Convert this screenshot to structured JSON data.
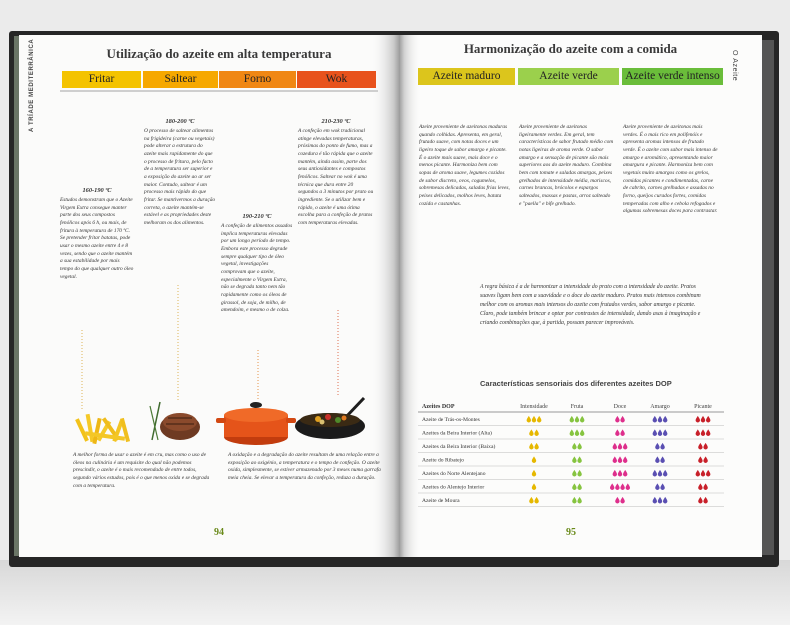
{
  "left_page": {
    "side_label": "A TRÍADE MEDITERRÂNICA",
    "title": "Utilização do azeite em alta temperatura",
    "methods": [
      {
        "name": "Fritar",
        "color": "#f4c300",
        "temperature": "160-190 ºC",
        "text": "Estudos demonstram que o Azeite Virgem Extra consegue manter parte dos seus compostos fenólicos após 6 h, ou mais, de fritura à temperatura de 170 ºC. Se pretender fritar batatas, pode usar o mesmo azeite entre 4 e 8 vezes, sendo que o azeite mantém a sua estabilidade por mais tempo do que qualquer outro óleo vegetal."
      },
      {
        "name": "Saltear",
        "color": "#f6a800",
        "temperature": "180-200 ºC",
        "text": "O processo de saltear alimentos na frigideira (carne ou vegetais) pode alterar a estrutura do azeite mais rapidamente do que o processo de fritura, pelo facto de a temperatura ser superior e a exposição do azeite ao ar ser maior. Contudo, saltear é um processo mais rápido do que fritar. Se mantivermos a duração correta, o azeite mantém-se estável e as propriedades deste melhoram os dos alimentos."
      },
      {
        "name": "Forno",
        "color": "#f08714",
        "temperature": "190-210 ºC",
        "text": "A confeção de alimentos assados implica temperaturas elevadas por um longo período de tempo. Embora este processo degrade sempre qualquer tipo de óleo vegetal, investigações comprovam que o azeite, especialmente o Virgem Extra, não se degrada tanto nem tão rapidamente como os óleos de girassol, de soja, de milho, de amendoim, e mesmo o de colza."
      },
      {
        "name": "Wok",
        "color": "#e8521c",
        "temperature": "210-230 ºC",
        "text": "A confeção em wok tradicional atinge elevadas temperaturas, próximas do ponto de fumo, mas a cozedura é tão rápida que o azeite mantém, ainda assim, parte dos seus antioxidantes e compostos fenólicos. Saltear no wok é uma técnica que dura entre 20 segundos a 3 minutos por prato ou ingrediente. Se o utilizar bem e rápido, o azeite é uma ótima escolha para a confeção de pratos com temperaturas elevadas."
      }
    ],
    "notes": [
      "A melhor forma de usar o azeite é em cru, mas como o uso de óleos na culinária é um requisite do qual não podemos prescindir, o azeite é o mais recomendado de entre todos, segundo vários estudos, pois é o que menos oxida e se degrada com a temperatura.",
      "A oxidação e a degradação do azeite resultam de uma relação entre a exposição ao oxigénio, a temperatura e o tempo de confeção. O azeite oxida, simplesmente, se estiver armazenado por 3 meses numa garrafa meia cheia. Se elevar a temperatura da confeção, reduza a duração."
    ],
    "page_number": "94"
  },
  "right_page": {
    "side_label": "O Azeite",
    "title": "Harmonização do azeite com a comida",
    "oils": [
      {
        "name": "Azeite maduro",
        "color": "#dcc51c",
        "text": "Azeite proveniente de azeitonas maduras quando colhidas. Apresenta, em geral, frutado suave, com notas doces e um ligeiro toque de sabor amargo e picante. É o azeite mais suave, mais doce e o menos picante. Harmoniza bem com sopas de aroma suave, legumes cozidos de sabor discreto, ovos, cogumelos, sobremesas delicadas, saladas frias leves, peixes delicados, molhos leves, batata cozida e castanhas."
      },
      {
        "name": "Azeite verde",
        "color": "#9bd04c",
        "text": "Azeite proveniente de azeitonas ligeiramente verdes. Em geral, tem características de sabor frutado médio com notas ligeiras de aroma verde. O sabor amargo e a sensação de picante são mais superiores aos do azeite maduro. Combina bem com tomate e saladas amargas, peixes grelhados de intensidade média, mariscos, carnes brancas, brócolos e espargos salteados, massas e pastas, arroz salteado e \"paella\" e bife grelhado."
      },
      {
        "name": "Azeite verde intenso",
        "color": "#6abd3a",
        "text": "Azeite proveniente de azeitonas mais verdes. É o mais rico em polifenóis e apresenta aromas intensos de frutado verde. É o azeite com sabor mais intenso de amargo e aromático, apresentando maior amargura e picante. Harmoniza bem com vegetais muito amargos como os grelos, comidas picantes e condimentadas, carne de cabrito, carnes grelhadas e assadas no forno, queijos curados fortes, comidas temperadas com alho e cebola refogados e algumas sobremesas doces para contrastar."
      }
    ],
    "rule": "A regra básica é a de harmonizar a intensidade do prato com a intensidade do azeite. Pratos suaves ligam bem com a suavidade e o doce do azeite maduro. Pratos mais intensos combinam melhor com os aromas mais intensos do azeite com frutados verdes, sabor amargo e picante. Claro, pode também brincar e optar por contrastes de intensidade, dando asas à imaginação e criando combinações que, à partida, possam parecer improváveis.",
    "table": {
      "title": "Características sensoriais dos diferentes azeites DOP",
      "row_header": "Azeites DOP",
      "columns": [
        {
          "label": "Intensidade",
          "color": "#e6b800"
        },
        {
          "label": "Fruta",
          "color": "#86c440"
        },
        {
          "label": "Doce",
          "color": "#de2f8c"
        },
        {
          "label": "Amargo",
          "color": "#5a4fb2"
        },
        {
          "label": "Picante",
          "color": "#c8202a"
        }
      ],
      "rows": [
        {
          "name": "Azeite de Trás-os-Montes",
          "values": [
            3,
            3,
            2,
            3,
            3
          ]
        },
        {
          "name": "Azeites da Beira Interior (Alta)",
          "values": [
            2,
            3,
            2,
            3,
            3
          ]
        },
        {
          "name": "Azeites da Beira Interior (Baixa)",
          "values": [
            2,
            2,
            3,
            2,
            2
          ]
        },
        {
          "name": "Azeite do Ribatejo",
          "values": [
            1,
            2,
            3,
            2,
            2
          ]
        },
        {
          "name": "Azeites do Norte Alentejano",
          "values": [
            1,
            2,
            3,
            3,
            3
          ]
        },
        {
          "name": "Azeites do Alentejo Interior",
          "values": [
            1,
            2,
            4,
            2,
            2
          ]
        },
        {
          "name": "Azeite de Moura",
          "values": [
            2,
            2,
            2,
            3,
            2
          ]
        }
      ]
    },
    "page_number": "95"
  }
}
